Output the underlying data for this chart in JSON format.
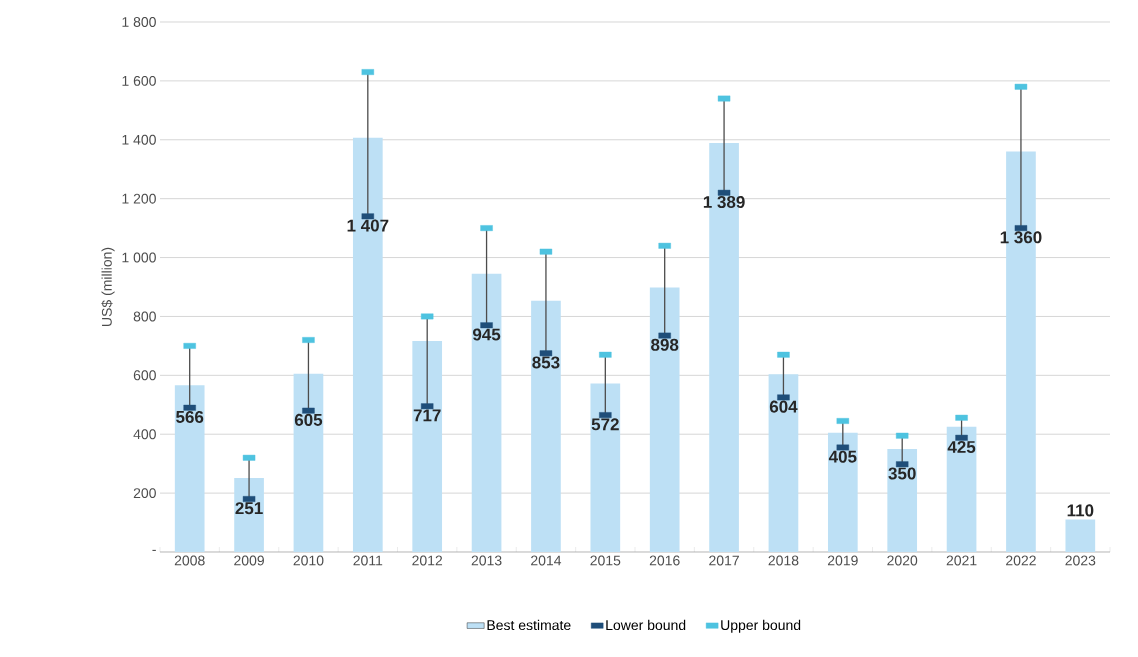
{
  "chart_data": {
    "type": "bar",
    "ylabel": "US$ (million)",
    "categories": [
      "2008",
      "2009",
      "2010",
      "2011",
      "2012",
      "2013",
      "2014",
      "2015",
      "2016",
      "2017",
      "2018",
      "2019",
      "2020",
      "2021",
      "2022",
      "2023"
    ],
    "ylim": [
      0,
      1800
    ],
    "yticks": [
      {
        "value": 0,
        "label": "-"
      },
      {
        "value": 200,
        "label": "200"
      },
      {
        "value": 400,
        "label": "400"
      },
      {
        "value": 600,
        "label": "600"
      },
      {
        "value": 800,
        "label": "800"
      },
      {
        "value": 1000,
        "label": "1 000"
      },
      {
        "value": 1200,
        "label": "1 200"
      },
      {
        "value": 1400,
        "label": "1 400"
      },
      {
        "value": 1600,
        "label": "1 600"
      },
      {
        "value": 1800,
        "label": "1 800"
      }
    ],
    "grid": "y",
    "legend": "bottom",
    "series": [
      {
        "name": "Best estimate",
        "color": "#bde0f5",
        "values": [
          566,
          251,
          605,
          1407,
          717,
          945,
          853,
          572,
          898,
          1389,
          604,
          405,
          350,
          425,
          1360,
          110
        ],
        "value_labels": [
          "566",
          "251",
          "605",
          "1 407",
          "717",
          "945",
          "853",
          "572",
          "898",
          "1 389",
          "604",
          "405",
          "350",
          "425",
          "1 360",
          "110"
        ]
      },
      {
        "name": "Lower bound",
        "type": "scatter",
        "color": "#1f4e79",
        "values": [
          490,
          180,
          480,
          1140,
          495,
          770,
          675,
          465,
          735,
          1220,
          525,
          355,
          298,
          388,
          1100,
          null
        ]
      },
      {
        "name": "Upper bound",
        "type": "scatter",
        "color": "#4ec3e0",
        "values": [
          700,
          320,
          720,
          1630,
          800,
          1100,
          1020,
          670,
          1040,
          1540,
          670,
          445,
          395,
          456,
          1580,
          null
        ]
      }
    ]
  }
}
